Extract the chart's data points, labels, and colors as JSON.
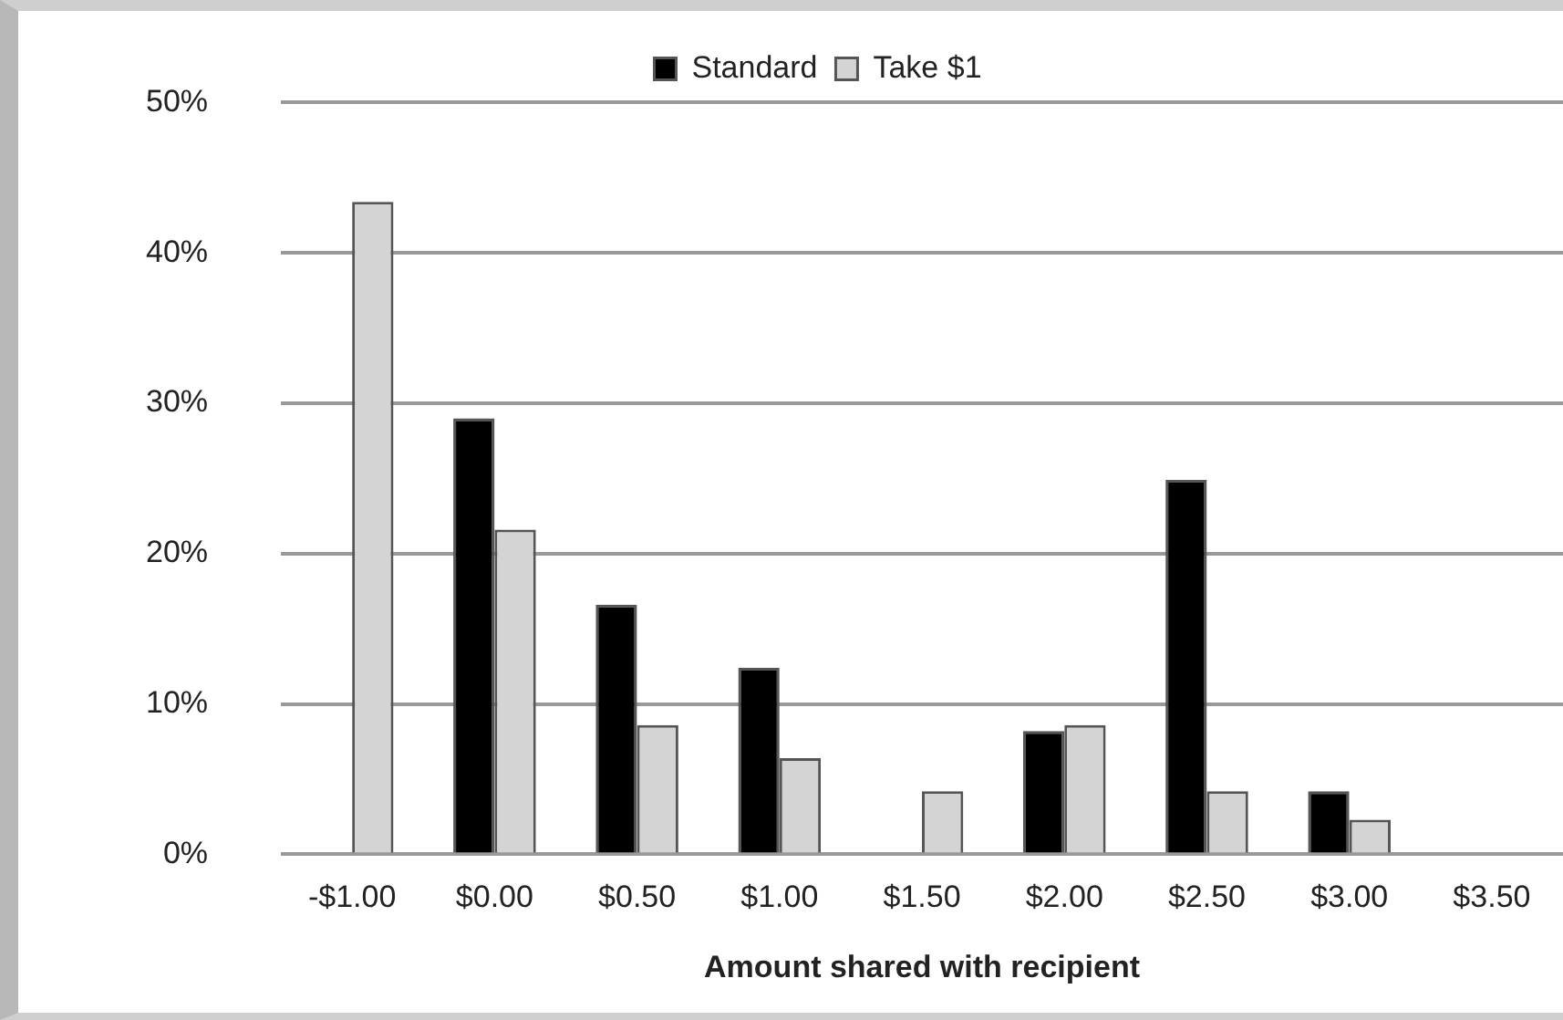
{
  "chart_data": {
    "type": "bar",
    "xlabel": "Amount shared with recipient",
    "categories": [
      "-$1.00",
      "$0.00",
      "$0.50",
      "$1.00",
      "$1.50",
      "$2.00",
      "$2.50",
      "$3.00",
      "$3.50"
    ],
    "series": [
      {
        "name": "Standard",
        "color": "#000000",
        "values": [
          0,
          29.0,
          16.6,
          12.4,
          0,
          8.2,
          24.9,
          4.2,
          0
        ]
      },
      {
        "name": "Take $1",
        "color": "#d4d4d4",
        "values": [
          43.4,
          21.6,
          8.6,
          6.4,
          4.2,
          8.6,
          4.2,
          2.3,
          0
        ]
      }
    ],
    "ylim": [
      0,
      50
    ],
    "yticks": [
      {
        "value": 0,
        "label": "0%"
      },
      {
        "value": 10,
        "label": "10%"
      },
      {
        "value": 20,
        "label": "20%"
      },
      {
        "value": 30,
        "label": "30%"
      },
      {
        "value": 40,
        "label": "40%"
      },
      {
        "value": 50,
        "label": "50%"
      }
    ],
    "grid": "y",
    "legend": "top"
  }
}
